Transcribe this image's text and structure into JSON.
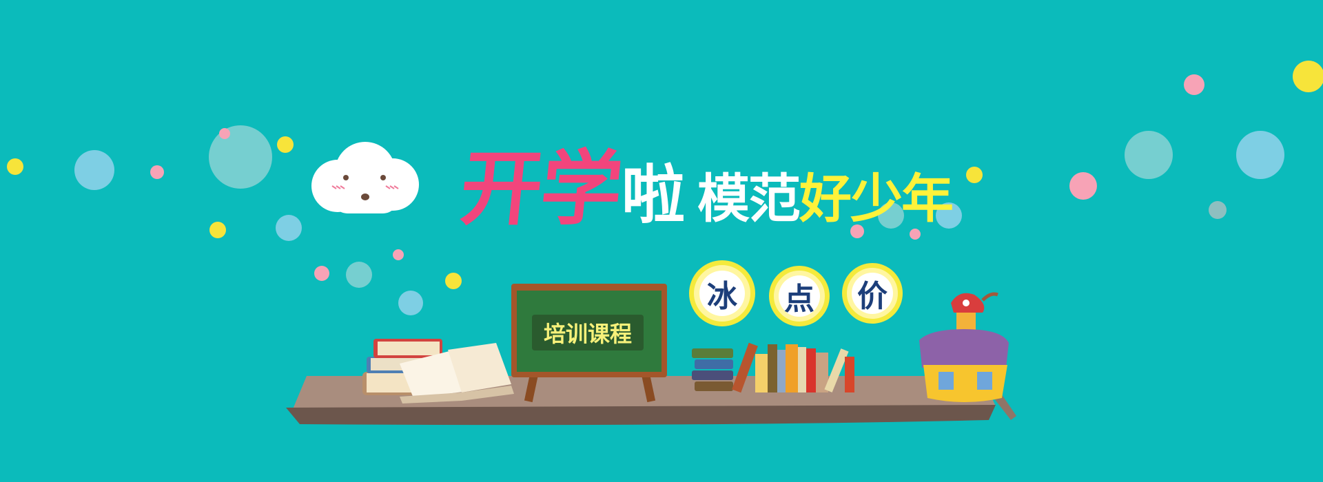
{
  "banner": {
    "title_main_part1": "开学",
    "title_main_part2": "啦",
    "title_sub_part1": "模范",
    "title_sub_part2": "好少年",
    "badge_chars": [
      "冰",
      "点",
      "价"
    ],
    "board_label": "培训课程"
  },
  "colors": {
    "background": "#0bbbbb",
    "title_pink": "#f2457c",
    "title_yellow": "#fff23a",
    "badge_ring": "#f4ea3c",
    "board_green": "#2f7a3d",
    "shelf": "#a98d7e"
  }
}
